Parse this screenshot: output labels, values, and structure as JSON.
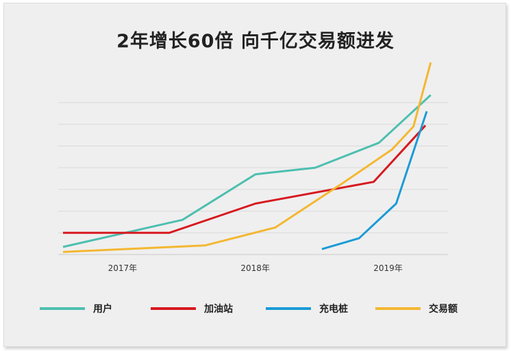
{
  "chart_data": {
    "type": "line",
    "title": "2年增长60倍  向千亿交易额进发",
    "x_tick_labels": [
      {
        "label": "2017年",
        "x": 2017.5
      },
      {
        "label": "2018年",
        "x": 2018.5
      },
      {
        "label": "2019年",
        "x": 2019.5
      }
    ],
    "xlim": [
      2017.0,
      2019.9
    ],
    "ylim": [
      0,
      7
    ],
    "y_gridlines": [
      0,
      1,
      2,
      3,
      4,
      5,
      6,
      7
    ],
    "grid": true,
    "y_axis_labels_shown": false,
    "legend_position": "bottom",
    "series": [
      {
        "name": "用户",
        "color": "#4dbfb0",
        "points": [
          [
            2017.0,
            0.35
          ],
          [
            2017.9,
            1.6
          ],
          [
            2018.45,
            3.7
          ],
          [
            2018.9,
            4.0
          ],
          [
            2019.38,
            5.15
          ],
          [
            2019.77,
            7.35
          ]
        ]
      },
      {
        "name": "加油站",
        "color": "#d7191f",
        "points": [
          [
            2017.0,
            1.0
          ],
          [
            2017.8,
            1.0
          ],
          [
            2018.45,
            2.35
          ],
          [
            2019.34,
            3.35
          ],
          [
            2019.73,
            5.95
          ]
        ]
      },
      {
        "name": "充电桩",
        "color": "#1b9bd6",
        "points": [
          [
            2018.95,
            0.25
          ],
          [
            2019.23,
            0.75
          ],
          [
            2019.51,
            2.35
          ],
          [
            2019.74,
            6.6
          ]
        ]
      },
      {
        "name": "交易额",
        "color": "#f4b731",
        "points": [
          [
            2017.0,
            0.12
          ],
          [
            2018.07,
            0.42
          ],
          [
            2018.6,
            1.25
          ],
          [
            2019.11,
            3.3
          ],
          [
            2019.48,
            4.85
          ],
          [
            2019.64,
            5.9
          ],
          [
            2019.77,
            8.85
          ]
        ]
      }
    ]
  }
}
